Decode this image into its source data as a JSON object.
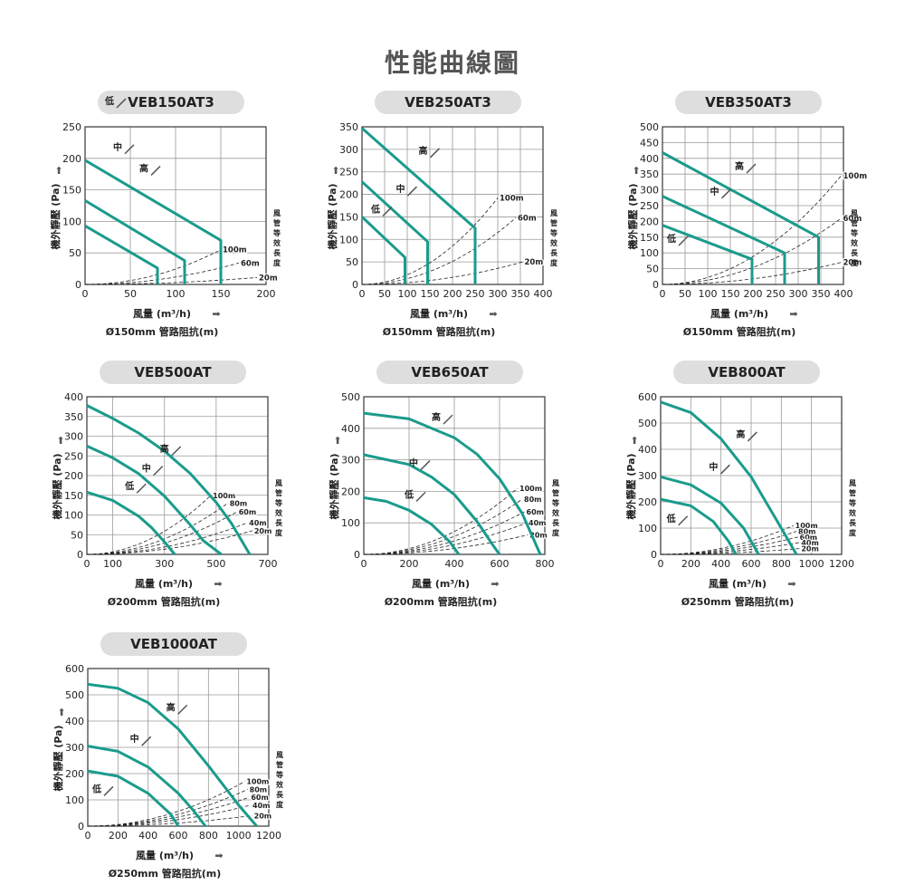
{
  "page": {
    "title": "性能曲線圖"
  },
  "chart_data": [
    {
      "type": "line",
      "title": "VEB150AT3",
      "xlabel": "風量 (m³/h)",
      "ylabel": "機外靜壓 (Pa)",
      "caption": "Ø150mm 管路阻抗(m)",
      "duct_label": "風管等效長度",
      "xlim": [
        0,
        200
      ],
      "ylim": [
        0,
        250
      ],
      "xticks": [
        0,
        50,
        100,
        150,
        200
      ],
      "yticks": [
        0,
        50,
        100,
        150,
        200,
        250
      ],
      "series": [
        {
          "name": "高",
          "x": [
            0,
            150,
            150
          ],
          "y": [
            197,
            70,
            0
          ]
        },
        {
          "name": "中",
          "x": [
            0,
            110,
            110
          ],
          "y": [
            133,
            38,
            0
          ]
        },
        {
          "name": "低",
          "x": [
            0,
            80,
            80
          ],
          "y": [
            93,
            26,
            0
          ]
        }
      ],
      "duct_curves": [
        {
          "name": "100m",
          "x_end": 150,
          "y_end": 55
        },
        {
          "name": "60m",
          "x_end": 170,
          "y_end": 34
        },
        {
          "name": "20m",
          "x_end": 190,
          "y_end": 11
        }
      ],
      "callouts": {
        "高": [
          65,
          179
        ],
        "中": [
          36,
          213
        ],
        "低": [
          27,
          286
        ]
      }
    },
    {
      "type": "line",
      "title": "VEB250AT3",
      "xlabel": "風量 (m³/h)",
      "ylabel": "機外靜壓 (Pa)",
      "caption": "Ø150mm 管路阻抗(m)",
      "duct_label": "風管等效長度",
      "xlim": [
        0,
        400
      ],
      "ylim": [
        0,
        350
      ],
      "xticks": [
        0,
        50,
        100,
        150,
        200,
        250,
        300,
        350,
        400
      ],
      "yticks": [
        0,
        50,
        100,
        150,
        200,
        250,
        300,
        350
      ],
      "series": [
        {
          "name": "高",
          "x": [
            0,
            250,
            250
          ],
          "y": [
            347,
            125,
            0
          ]
        },
        {
          "name": "中",
          "x": [
            0,
            145,
            145
          ],
          "y": [
            228,
            95,
            0
          ]
        },
        {
          "name": "低",
          "x": [
            0,
            95,
            95
          ],
          "y": [
            150,
            60,
            0
          ]
        }
      ],
      "duct_curves": [
        {
          "name": "100m",
          "x_end": 300,
          "y_end": 192
        },
        {
          "name": "60m",
          "x_end": 340,
          "y_end": 148
        },
        {
          "name": "20m",
          "x_end": 355,
          "y_end": 50
        }
      ],
      "callouts": {
        "高": [
          135,
          290
        ],
        "中": [
          85,
          205
        ],
        "低": [
          30,
          160
        ]
      }
    },
    {
      "type": "line",
      "title": "VEB350AT3",
      "xlabel": "風量 (m³/h)",
      "ylabel": "機外靜壓 (Pa)",
      "caption": "Ø150mm 管路阻抗(m)",
      "duct_label": "風管等效長度",
      "xlim": [
        0,
        400
      ],
      "ylim": [
        0,
        500
      ],
      "xticks": [
        0,
        50,
        100,
        150,
        200,
        250,
        300,
        350,
        400
      ],
      "yticks": [
        0,
        50,
        100,
        150,
        200,
        250,
        300,
        350,
        400,
        450,
        500
      ],
      "series": [
        {
          "name": "高",
          "x": [
            0,
            345,
            345
          ],
          "y": [
            418,
            150,
            0
          ]
        },
        {
          "name": "中",
          "x": [
            0,
            270,
            270
          ],
          "y": [
            280,
            100,
            0
          ]
        },
        {
          "name": "低",
          "x": [
            0,
            198,
            198
          ],
          "y": [
            188,
            80,
            0
          ]
        }
      ],
      "duct_curves": [
        {
          "name": "100m",
          "x_end": 395,
          "y_end": 345
        },
        {
          "name": "60m",
          "x_end": 395,
          "y_end": 210
        },
        {
          "name": "20m",
          "x_end": 395,
          "y_end": 70
        }
      ],
      "callouts": {
        "高": [
          170,
          365
        ],
        "中": [
          115,
          285
        ],
        "低": [
          20,
          135
        ]
      }
    },
    {
      "type": "line",
      "title": "VEB500AT",
      "xlabel": "風量 (m³/h)",
      "ylabel": "機外靜壓 (Pa)",
      "caption": "Ø200mm 管路阻抗(m)",
      "duct_label": "風管等效長度",
      "xlim": [
        0,
        700
      ],
      "ylim": [
        0,
        400
      ],
      "xticks": [
        0,
        100,
        300,
        500,
        700
      ],
      "yticks": [
        0,
        50,
        100,
        150,
        200,
        250,
        300,
        350,
        400
      ],
      "series": [
        {
          "name": "高",
          "x": [
            0,
            100,
            200,
            300,
            400,
            500,
            560,
            630
          ],
          "y": [
            378,
            345,
            308,
            262,
            205,
            132,
            78,
            0
          ]
        },
        {
          "name": "中",
          "x": [
            0,
            100,
            200,
            300,
            400,
            450,
            520
          ],
          "y": [
            275,
            245,
            205,
            148,
            75,
            35,
            0
          ]
        },
        {
          "name": "低",
          "x": [
            0,
            100,
            200,
            250,
            300,
            340
          ],
          "y": [
            158,
            137,
            97,
            68,
            32,
            0
          ]
        }
      ],
      "duct_curves": [
        {
          "name": "100m",
          "x_end": 480,
          "y_end": 150
        },
        {
          "name": "80m",
          "x_end": 545,
          "y_end": 130
        },
        {
          "name": "60m",
          "x_end": 580,
          "y_end": 108
        },
        {
          "name": "40m",
          "x_end": 620,
          "y_end": 80
        },
        {
          "name": "20m",
          "x_end": 640,
          "y_end": 60
        }
      ],
      "callouts": {
        "高": [
          300,
          260
        ],
        "中": [
          230,
          210
        ],
        "低": [
          165,
          165
        ]
      }
    },
    {
      "type": "line",
      "title": "VEB650AT",
      "xlabel": "風量 (m³/h)",
      "ylabel": "機外靜壓 (Pa)",
      "caption": "Ø200mm 管路阻抗(m)",
      "duct_label": "風管等效長度",
      "xlim": [
        0,
        800
      ],
      "ylim": [
        0,
        500
      ],
      "xticks": [
        0,
        200,
        400,
        600,
        800
      ],
      "yticks": [
        0,
        100,
        200,
        300,
        400,
        500
      ],
      "series": [
        {
          "name": "高",
          "x": [
            0,
            200,
            400,
            500,
            600,
            700,
            780
          ],
          "y": [
            448,
            430,
            370,
            318,
            240,
            130,
            0
          ]
        },
        {
          "name": "中",
          "x": [
            0,
            200,
            300,
            400,
            500,
            570,
            600
          ],
          "y": [
            316,
            285,
            245,
            190,
            105,
            30,
            0
          ]
        },
        {
          "name": "低",
          "x": [
            0,
            100,
            200,
            300,
            380,
            420
          ],
          "y": [
            180,
            168,
            140,
            95,
            40,
            0
          ]
        }
      ],
      "duct_curves": [
        {
          "name": "100m",
          "x_end": 680,
          "y_end": 210
        },
        {
          "name": "80m",
          "x_end": 700,
          "y_end": 175
        },
        {
          "name": "60m",
          "x_end": 710,
          "y_end": 135
        },
        {
          "name": "40m",
          "x_end": 720,
          "y_end": 100
        },
        {
          "name": "20m",
          "x_end": 725,
          "y_end": 62
        }
      ],
      "callouts": {
        "高": [
          320,
          425
        ],
        "中": [
          220,
          280
        ],
        "低": [
          200,
          180
        ]
      }
    },
    {
      "type": "line",
      "title": "VEB800AT",
      "xlabel": "風量 (m³/h)",
      "ylabel": "機外靜壓 (Pa)",
      "caption": "Ø250mm 管路阻抗(m)",
      "duct_label": "風管等效長度",
      "xlim": [
        0,
        1200
      ],
      "ylim": [
        0,
        600
      ],
      "xticks": [
        0,
        200,
        400,
        600,
        800,
        1000,
        1200
      ],
      "yticks": [
        0,
        100,
        200,
        300,
        400,
        500,
        600
      ],
      "series": [
        {
          "name": "高",
          "x": [
            0,
            200,
            400,
            600,
            800,
            900
          ],
          "y": [
            580,
            540,
            440,
            295,
            100,
            0
          ]
        },
        {
          "name": "中",
          "x": [
            0,
            200,
            400,
            550,
            650
          ],
          "y": [
            295,
            265,
            195,
            100,
            0
          ]
        },
        {
          "name": "低",
          "x": [
            0,
            200,
            350,
            450,
            500
          ],
          "y": [
            210,
            185,
            125,
            50,
            0
          ]
        }
      ],
      "duct_curves": [
        {
          "name": "100m",
          "x_end": 880,
          "y_end": 110
        },
        {
          "name": "80m",
          "x_end": 900,
          "y_end": 88
        },
        {
          "name": "60m",
          "x_end": 910,
          "y_end": 66
        },
        {
          "name": "40m",
          "x_end": 920,
          "y_end": 45
        },
        {
          "name": "20m",
          "x_end": 920,
          "y_end": 22
        }
      ],
      "callouts": {
        "高": [
          530,
          445
        ],
        "中": [
          350,
          320
        ],
        "低": [
          70,
          125
        ]
      }
    },
    {
      "type": "line",
      "title": "VEB1000AT",
      "xlabel": "風量 (m³/h)",
      "ylabel": "機外靜壓 (Pa)",
      "caption": "Ø250mm 管路阻抗(m)",
      "duct_label": "風管等效長度",
      "xlim": [
        0,
        1200
      ],
      "ylim": [
        0,
        600
      ],
      "xticks": [
        0,
        200,
        400,
        600,
        800,
        1000,
        1200
      ],
      "yticks": [
        0,
        100,
        200,
        300,
        400,
        500,
        600
      ],
      "series": [
        {
          "name": "高",
          "x": [
            0,
            200,
            400,
            600,
            800,
            1000,
            1120
          ],
          "y": [
            540,
            525,
            470,
            370,
            230,
            80,
            0
          ]
        },
        {
          "name": "中",
          "x": [
            0,
            200,
            400,
            600,
            700,
            780
          ],
          "y": [
            305,
            285,
            225,
            125,
            60,
            0
          ]
        },
        {
          "name": "低",
          "x": [
            0,
            200,
            400,
            550,
            600
          ],
          "y": [
            210,
            190,
            125,
            45,
            0
          ]
        }
      ],
      "duct_curves": [
        {
          "name": "100m",
          "x_end": 1040,
          "y_end": 170
        },
        {
          "name": "80m",
          "x_end": 1060,
          "y_end": 140
        },
        {
          "name": "60m",
          "x_end": 1070,
          "y_end": 110
        },
        {
          "name": "40m",
          "x_end": 1080,
          "y_end": 80
        },
        {
          "name": "20m",
          "x_end": 1090,
          "y_end": 40
        }
      ],
      "callouts": {
        "高": [
          550,
          440
        ],
        "中": [
          310,
          320
        ],
        "低": [
          60,
          130
        ]
      }
    }
  ],
  "colors": {
    "curve": "#1a9b8c",
    "grid": "#9a9a9a",
    "frame": "#444444",
    "duct": "#222222",
    "pill": "#dedede",
    "arrow": "#555555"
  }
}
